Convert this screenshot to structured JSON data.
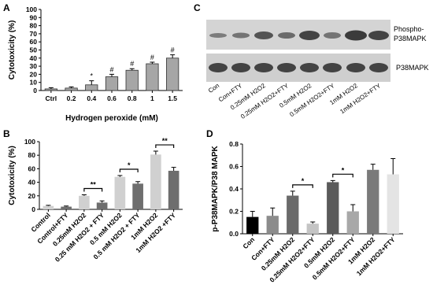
{
  "chart_data": [
    {
      "type": "bar",
      "label": "A",
      "title": null,
      "x_label": "Hydrogen peroxide (mM)",
      "y_label": "Cytotoxicity (%)",
      "categories": [
        "Ctrl",
        "0.2",
        "0.4",
        "0.6",
        "0.8",
        "1",
        "1.5"
      ],
      "values": [
        2,
        3,
        7,
        17,
        25,
        33,
        40
      ],
      "errors": [
        1.5,
        1.5,
        5,
        3,
        2,
        2,
        4
      ],
      "colors": [
        "#a6a6a6",
        "#a6a6a6",
        "#a6a6a6",
        "#a6a6a6",
        "#a6a6a6",
        "#a6a6a6",
        "#a6a6a6"
      ],
      "ylim": [
        0,
        100
      ],
      "yticks": [
        0,
        10,
        20,
        30,
        40,
        50,
        60,
        70,
        80,
        90,
        100
      ],
      "annotations": [
        {
          "text": "*",
          "category": "0.4"
        },
        {
          "text": "#",
          "category": "0.6"
        },
        {
          "text": "#",
          "category": "0.8"
        },
        {
          "text": "#",
          "category": "1"
        },
        {
          "text": "#",
          "category": "1.5"
        }
      ]
    },
    {
      "type": "bar",
      "label": "B",
      "y_label": "Cytotoxicity (%)",
      "categories": [
        "Control",
        "Control+FTY",
        "0.25mM H2O2",
        "0.25 mM H2O2 + FTY",
        "0.5 mM H2O2",
        "0.5 mM H2O2 + FTY",
        "1mM H2O2",
        "1mM H2O2 +FTY"
      ],
      "values": [
        5,
        4,
        20,
        10,
        48,
        38,
        81,
        57
      ],
      "errors": [
        1,
        1,
        1.5,
        2.5,
        2,
        3,
        5,
        5
      ],
      "colors": [
        "#d0d0d0",
        "#6e6e6e",
        "#d0d0d0",
        "#6e6e6e",
        "#d0d0d0",
        "#6e6e6e",
        "#d0d0d0",
        "#6e6e6e"
      ],
      "ylim": [
        0,
        100
      ],
      "yticks": [
        0,
        20,
        40,
        60,
        80,
        100
      ],
      "brackets": [
        {
          "text": "**",
          "from": "0.25mM H2O2",
          "to": "0.25 mM H2O2 + FTY"
        },
        {
          "text": "*",
          "from": "0.5 mM H2O2",
          "to": "0.5 mM H2O2 + FTY"
        },
        {
          "text": "**",
          "from": "1mM H2O2",
          "to": "1mM H2O2 +FTY"
        }
      ]
    },
    {
      "type": "bar",
      "label": "D",
      "y_label": "p-P38MAPK/P38 MAPK",
      "categories": [
        "Con",
        "Con+FTY",
        "0.25mM H2O2",
        "0.25mM H2O2+FTY",
        "0.5mM H2O2",
        "0.5mM H2O2+FTY",
        "1mM H2O2",
        "1mM H2O2+FTY"
      ],
      "values": [
        0.15,
        0.16,
        0.34,
        0.09,
        0.46,
        0.2,
        0.57,
        0.53
      ],
      "errors": [
        0.05,
        0.07,
        0.04,
        0.015,
        0.015,
        0.06,
        0.05,
        0.14
      ],
      "colors": [
        "#000000",
        "#8c8c8c",
        "#6a6a6a",
        "#c4c4c4",
        "#5a5a5a",
        "#a8a8a8",
        "#7a7a7a",
        "#e4e4e4"
      ],
      "ylim": [
        0,
        0.8
      ],
      "yticks": [
        {
          "value": 0,
          "label": "0.0"
        },
        {
          "value": 0.2,
          "label": "0.2"
        },
        {
          "value": 0.4,
          "label": "0.4"
        },
        {
          "value": 0.6,
          "label": "0.6"
        },
        {
          "value": 0.8,
          "label": "0.8"
        }
      ],
      "brackets": [
        {
          "text": "*",
          "from": "0.25mM H2O2",
          "to": "0.25mM H2O2+FTY"
        },
        {
          "text": "*",
          "from": "0.5mM H2O2",
          "to": "0.5mM H2O2+FTY"
        }
      ]
    }
  ],
  "blot": {
    "label": "C",
    "phospho_label": [
      "Phospho-",
      "P38MAPK"
    ],
    "total_label": "P38MAPK",
    "lanes": [
      "Con",
      "Con+FTY",
      "0.25mM H2O2",
      "0.25mM H2O2+FTY",
      "0.5mM H2O2",
      "0.5mM H2O2+FTY",
      "1mM H2O2",
      "1mM H2O2+FTY"
    ]
  }
}
